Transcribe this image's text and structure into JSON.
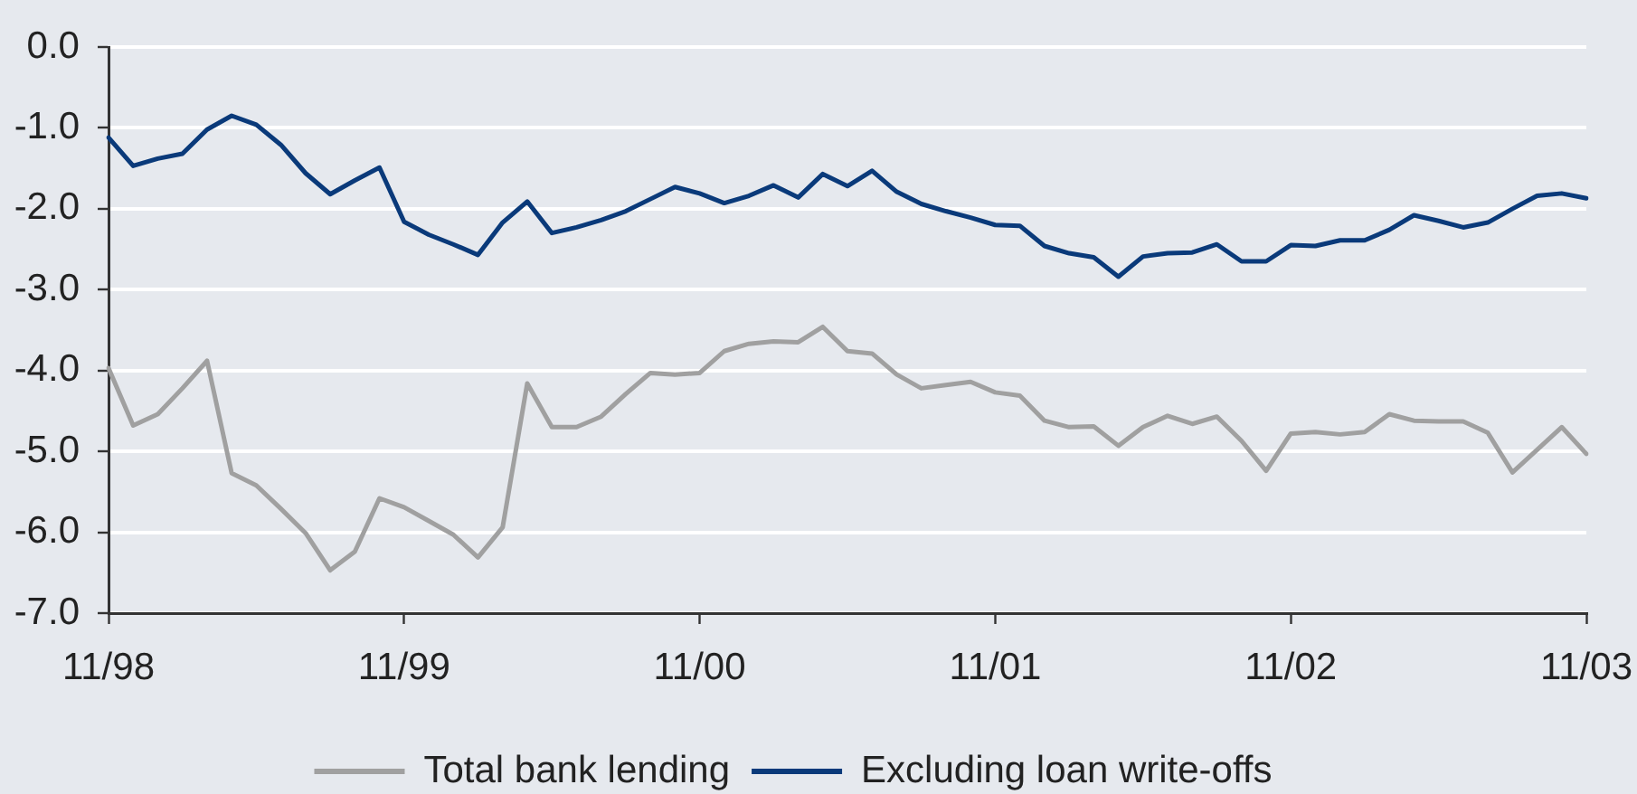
{
  "chart_data": {
    "type": "line",
    "categories": [
      "11/98",
      null,
      null,
      null,
      null,
      null,
      null,
      null,
      null,
      null,
      null,
      null,
      "11/99",
      null,
      null,
      null,
      null,
      null,
      null,
      null,
      null,
      null,
      null,
      null,
      "11/00",
      null,
      null,
      null,
      null,
      null,
      null,
      null,
      null,
      null,
      null,
      null,
      "11/01",
      null,
      null,
      null,
      null,
      null,
      null,
      null,
      null,
      null,
      null,
      null,
      "11/02",
      null,
      null,
      null,
      null,
      null,
      null,
      null,
      null,
      null,
      null,
      null,
      "11/03"
    ],
    "series": [
      {
        "name": "Total bank lending",
        "color": "#a0a0a0",
        "values": [
          -3.97,
          -4.68,
          -4.54,
          -4.22,
          -3.88,
          -5.27,
          -5.42,
          -5.71,
          -6.01,
          -6.47,
          -6.24,
          -5.58,
          -5.69,
          -5.86,
          -6.03,
          -6.31,
          -5.94,
          -4.16,
          -4.7,
          -4.7,
          -4.57,
          -4.29,
          -4.03,
          -4.05,
          -4.03,
          -3.76,
          -3.67,
          -3.64,
          -3.65,
          -3.46,
          -3.76,
          -3.79,
          -4.05,
          -4.22,
          -4.18,
          -4.14,
          -4.27,
          -4.31,
          -4.62,
          -4.7,
          -4.69,
          -4.93,
          -4.7,
          -4.56,
          -4.66,
          -4.57,
          -4.87,
          -5.24,
          -4.78,
          -4.76,
          -4.79,
          -4.76,
          -4.54,
          -4.62,
          -4.63,
          -4.63,
          -4.77,
          -5.26,
          -4.98,
          -4.7,
          -5.03
        ]
      },
      {
        "name": "Excluding loan write-offs",
        "color": "#0a3a7a",
        "values": [
          -1.12,
          -1.47,
          -1.38,
          -1.32,
          -1.02,
          -0.85,
          -0.96,
          -1.21,
          -1.56,
          -1.82,
          -1.65,
          -1.49,
          -2.16,
          -2.32,
          -2.44,
          -2.57,
          -2.17,
          -1.91,
          -2.3,
          -2.23,
          -2.14,
          -2.03,
          -1.88,
          -1.73,
          -1.81,
          -1.93,
          -1.84,
          -1.71,
          -1.86,
          -1.57,
          -1.72,
          -1.53,
          -1.79,
          -1.94,
          -2.03,
          -2.11,
          -2.2,
          -2.21,
          -2.46,
          -2.55,
          -2.6,
          -2.84,
          -2.59,
          -2.55,
          -2.54,
          -2.44,
          -2.65,
          -2.65,
          -2.45,
          -2.46,
          -2.39,
          -2.39,
          -2.26,
          -2.08,
          -2.15,
          -2.23,
          -2.17,
          -2.0,
          -1.84,
          -1.81,
          -1.87
        ]
      }
    ],
    "ylim": [
      -7,
      0
    ],
    "yticks": [
      {
        "value": 0,
        "label": "0.0"
      },
      {
        "value": -1,
        "label": "-1.0"
      },
      {
        "value": -2,
        "label": "-2.0"
      },
      {
        "value": -3,
        "label": "-3.0"
      },
      {
        "value": -4,
        "label": "-4.0"
      },
      {
        "value": -5,
        "label": "-5.0"
      },
      {
        "value": -6,
        "label": "-6.0"
      },
      {
        "value": -7,
        "label": "-7.0"
      }
    ],
    "grid": "y",
    "legend": "bottom"
  }
}
